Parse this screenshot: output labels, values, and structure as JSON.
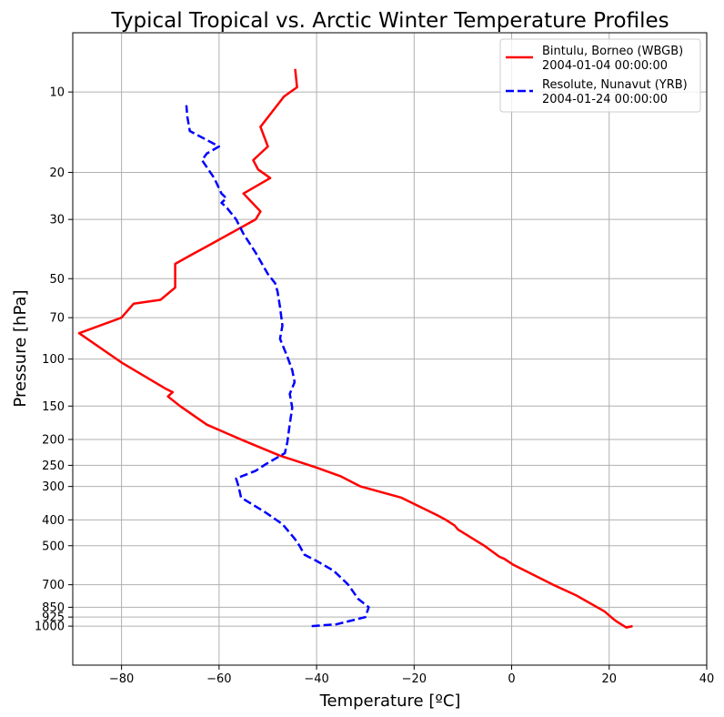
{
  "chart_data": {
    "type": "line",
    "title": "Typical Tropical vs. Arctic Winter Temperature Profiles",
    "xlabel": "Temperature [ºC]",
    "ylabel": "Pressure [hPa]",
    "xlim": [
      -90,
      40
    ],
    "ylim": [
      1400,
      6
    ],
    "yscale": "log",
    "y_inverted": true,
    "grid": true,
    "legend_position": "top-right",
    "x_ticks": [
      -80,
      -60,
      -40,
      -20,
      0,
      20,
      40
    ],
    "x_tick_labels": [
      "−80",
      "−60",
      "−40",
      "−20",
      "0",
      "20",
      "40"
    ],
    "y_ticks": [
      10,
      20,
      30,
      50,
      70,
      100,
      150,
      200,
      250,
      300,
      400,
      500,
      700,
      850,
      925,
      1000
    ],
    "y_tick_labels": [
      "10",
      "20",
      "30",
      "50",
      "70",
      "100",
      "150",
      "200",
      "250",
      "300",
      "400",
      "500",
      "700",
      "850",
      "925",
      "1000"
    ],
    "series": [
      {
        "name": "Bintulu, Borneo (WBGB)",
        "date": "2004-01-04 00:00:00",
        "color": "#ff0000",
        "line_style": "solid",
        "points": [
          {
            "t": 24.8,
            "p": 1000
          },
          {
            "t": 23.5,
            "p": 1012
          },
          {
            "t": 21.5,
            "p": 960
          },
          {
            "t": 21.0,
            "p": 945
          },
          {
            "t": 19.0,
            "p": 880
          },
          {
            "t": 13.4,
            "p": 770
          },
          {
            "t": 8.5,
            "p": 700
          },
          {
            "t": 0.4,
            "p": 590
          },
          {
            "t": -1.5,
            "p": 560
          },
          {
            "t": -2.5,
            "p": 550
          },
          {
            "t": -5.6,
            "p": 500
          },
          {
            "t": -11.0,
            "p": 435
          },
          {
            "t": -11.7,
            "p": 420
          },
          {
            "t": -13.5,
            "p": 400
          },
          {
            "t": -15.2,
            "p": 385
          },
          {
            "t": -22.7,
            "p": 330
          },
          {
            "t": -31.0,
            "p": 300
          },
          {
            "t": -35.0,
            "p": 275
          },
          {
            "t": -40.0,
            "p": 255
          },
          {
            "t": -47.5,
            "p": 230
          },
          {
            "t": -55.0,
            "p": 202
          },
          {
            "t": -62.5,
            "p": 176
          },
          {
            "t": -68.0,
            "p": 150
          },
          {
            "t": -70.5,
            "p": 138
          },
          {
            "t": -69.5,
            "p": 133
          },
          {
            "t": -71.0,
            "p": 129
          },
          {
            "t": -80.0,
            "p": 103
          },
          {
            "t": -88.7,
            "p": 80
          },
          {
            "t": -80.0,
            "p": 70
          },
          {
            "t": -77.5,
            "p": 62
          },
          {
            "t": -72.0,
            "p": 60
          },
          {
            "t": -69.0,
            "p": 54
          },
          {
            "t": -69.0,
            "p": 44
          },
          {
            "t": -66.0,
            "p": 41
          },
          {
            "t": -61.5,
            "p": 37
          },
          {
            "t": -52.5,
            "p": 30
          },
          {
            "t": -51.5,
            "p": 28
          },
          {
            "t": -55.0,
            "p": 24
          },
          {
            "t": -49.5,
            "p": 21
          },
          {
            "t": -52.0,
            "p": 19.5
          },
          {
            "t": -53.0,
            "p": 18
          },
          {
            "t": -50.0,
            "p": 16
          },
          {
            "t": -51.5,
            "p": 13.5
          },
          {
            "t": -46.7,
            "p": 10.4
          },
          {
            "t": -44.0,
            "p": 9.6
          },
          {
            "t": -44.4,
            "p": 8.2
          }
        ]
      },
      {
        "name": "Resolute, Nunavut (YRB)",
        "date": "2004-01-24 00:00:00",
        "color": "#0000ff",
        "line_style": "dashed",
        "points": [
          {
            "t": -41.0,
            "p": 1000
          },
          {
            "t": -36.0,
            "p": 985
          },
          {
            "t": -30.0,
            "p": 925
          },
          {
            "t": -29.3,
            "p": 850
          },
          {
            "t": -31.5,
            "p": 790
          },
          {
            "t": -33.5,
            "p": 700
          },
          {
            "t": -36.5,
            "p": 620
          },
          {
            "t": -40.0,
            "p": 570
          },
          {
            "t": -42.5,
            "p": 540
          },
          {
            "t": -43.5,
            "p": 500
          },
          {
            "t": -44.5,
            "p": 470
          },
          {
            "t": -47.0,
            "p": 415
          },
          {
            "t": -50.5,
            "p": 375
          },
          {
            "t": -55.5,
            "p": 330
          },
          {
            "t": -56.0,
            "p": 300
          },
          {
            "t": -56.5,
            "p": 280
          },
          {
            "t": -52.5,
            "p": 262
          },
          {
            "t": -50.5,
            "p": 248
          },
          {
            "t": -46.5,
            "p": 225
          },
          {
            "t": -46.0,
            "p": 205
          },
          {
            "t": -45.5,
            "p": 175
          },
          {
            "t": -45.0,
            "p": 152
          },
          {
            "t": -45.5,
            "p": 135
          },
          {
            "t": -44.5,
            "p": 122
          },
          {
            "t": -45.0,
            "p": 110
          },
          {
            "t": -46.0,
            "p": 98
          },
          {
            "t": -47.5,
            "p": 84
          },
          {
            "t": -47.0,
            "p": 75
          },
          {
            "t": -47.5,
            "p": 64
          },
          {
            "t": -48.0,
            "p": 56
          },
          {
            "t": -48.5,
            "p": 52
          },
          {
            "t": -50.0,
            "p": 48
          },
          {
            "t": -52.5,
            "p": 40
          },
          {
            "t": -55.0,
            "p": 34
          },
          {
            "t": -56.5,
            "p": 30
          },
          {
            "t": -58.5,
            "p": 27
          },
          {
            "t": -59.5,
            "p": 26
          },
          {
            "t": -58.5,
            "p": 25
          },
          {
            "t": -59.5,
            "p": 24
          },
          {
            "t": -61.0,
            "p": 21
          },
          {
            "t": -63.5,
            "p": 18
          },
          {
            "t": -62.5,
            "p": 17
          },
          {
            "t": -60.0,
            "p": 16
          },
          {
            "t": -66.0,
            "p": 14
          },
          {
            "t": -66.5,
            "p": 12.4
          },
          {
            "t": -66.7,
            "p": 11.2
          }
        ]
      }
    ]
  }
}
